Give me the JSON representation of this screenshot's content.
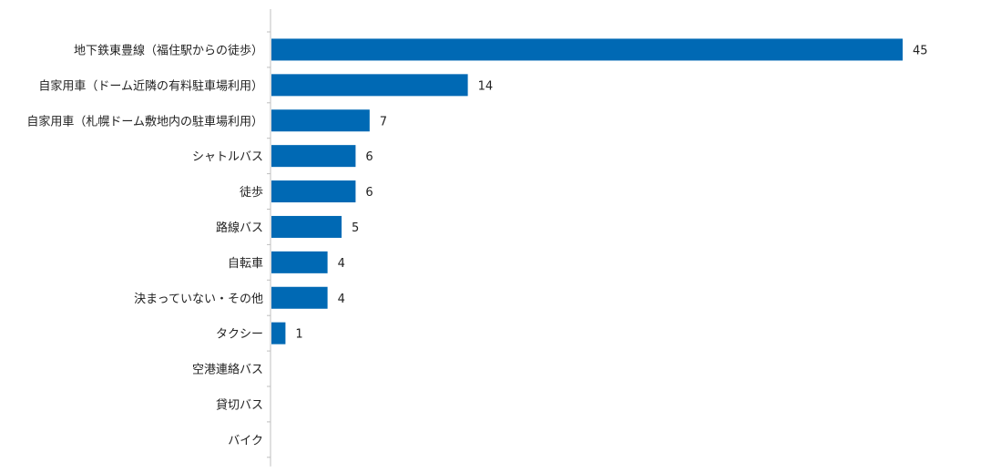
{
  "chart_data": {
    "type": "bar",
    "orientation": "horizontal",
    "title": "",
    "xlabel": "",
    "ylabel": "",
    "categories": [
      "地下鉄東豊線（福住駅からの徒歩）",
      "自家用車（ドーム近隣の有料駐車場利用）",
      "自家用車（札幌ドーム敷地内の駐車場利用）",
      "シャトルバス",
      "徒歩",
      "路線バス",
      "自転車",
      "決まっていない・その他",
      "タクシー",
      "空港連絡バス",
      "貸切バス",
      "バイク"
    ],
    "values": [
      45,
      14,
      7,
      6,
      6,
      5,
      4,
      4,
      1,
      null,
      null,
      null
    ],
    "value_labels": [
      "45",
      "14",
      "7",
      "6",
      "6",
      "5",
      "4",
      "4",
      "1",
      "",
      "",
      ""
    ],
    "xlim": [
      0,
      45
    ],
    "grid": false,
    "legend": "none",
    "bar_color": "#0069b4",
    "axis_color": "#bfbfbf"
  }
}
